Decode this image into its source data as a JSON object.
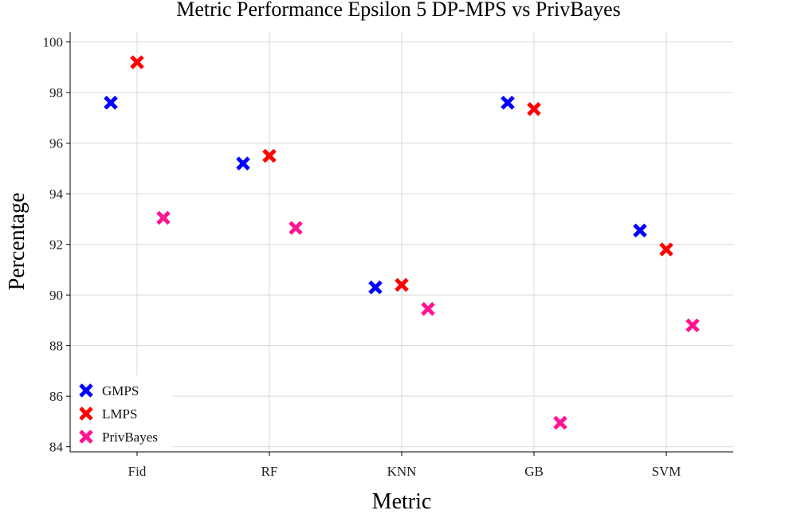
{
  "chart_data": {
    "type": "scatter",
    "title": "Metric Performance Epsilon 5 DP-MPS vs PrivBayes",
    "xlabel": "Metric",
    "ylabel": "Percentage",
    "categories": [
      "Fid",
      "RF",
      "KNN",
      "GB",
      "SVM"
    ],
    "ylim": [
      83.8,
      100.4
    ],
    "yticks": [
      84,
      86,
      88,
      90,
      92,
      94,
      96,
      98,
      100
    ],
    "grid": true,
    "legend_position": "bottom-left",
    "marker": "x",
    "series": [
      {
        "name": "GMPS",
        "color": "#0000ff",
        "values": [
          97.6,
          95.2,
          90.3,
          97.6,
          92.55
        ]
      },
      {
        "name": "LMPS",
        "color": "#ff0000",
        "values": [
          99.2,
          95.5,
          90.4,
          97.35,
          91.8
        ]
      },
      {
        "name": "PrivBayes",
        "color": "#ff1493",
        "values": [
          93.05,
          92.65,
          89.45,
          84.95,
          88.8
        ]
      }
    ]
  }
}
